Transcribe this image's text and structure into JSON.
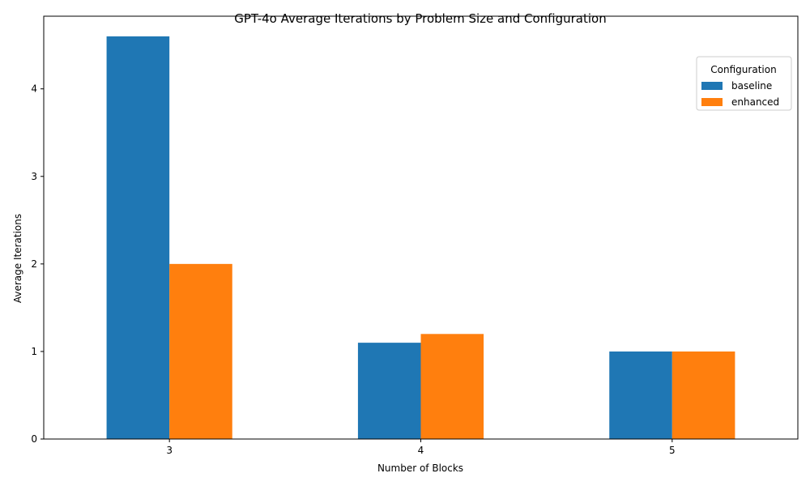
{
  "chart_data": {
    "type": "bar",
    "title": "GPT-4o Average Iterations by Problem Size and Configuration",
    "xlabel": "Number of Blocks",
    "ylabel": "Average Iterations",
    "categories": [
      "3",
      "4",
      "5"
    ],
    "series": [
      {
        "name": "baseline",
        "color": "#1f77b4",
        "values": [
          4.6,
          1.1,
          1.0
        ]
      },
      {
        "name": "enhanced",
        "color": "#ff7f0e",
        "values": [
          2.0,
          1.2,
          1.0
        ]
      }
    ],
    "ylim": [
      0,
      4.83
    ],
    "yticks": [
      0,
      1,
      2,
      3,
      4
    ],
    "grid": false,
    "legend": {
      "title": "Configuration",
      "placement": "top-right"
    }
  }
}
